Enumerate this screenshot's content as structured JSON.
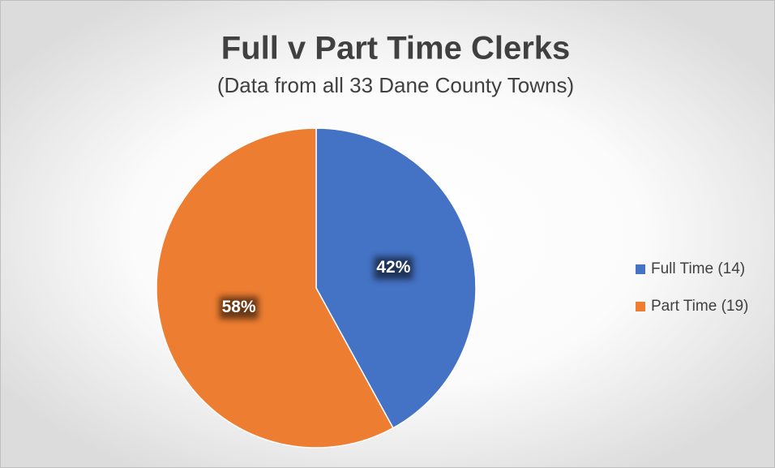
{
  "chart_data": {
    "type": "pie",
    "title": "Full v Part Time Clerks",
    "subtitle": "(Data from all 33 Dane County Towns)",
    "categories": [
      "Full Time (14)",
      "Part Time (19)"
    ],
    "values": [
      42,
      58
    ],
    "value_labels": [
      "42%",
      "58%"
    ],
    "colors": [
      "#4472c4",
      "#ed7d31"
    ],
    "legend": "right"
  }
}
